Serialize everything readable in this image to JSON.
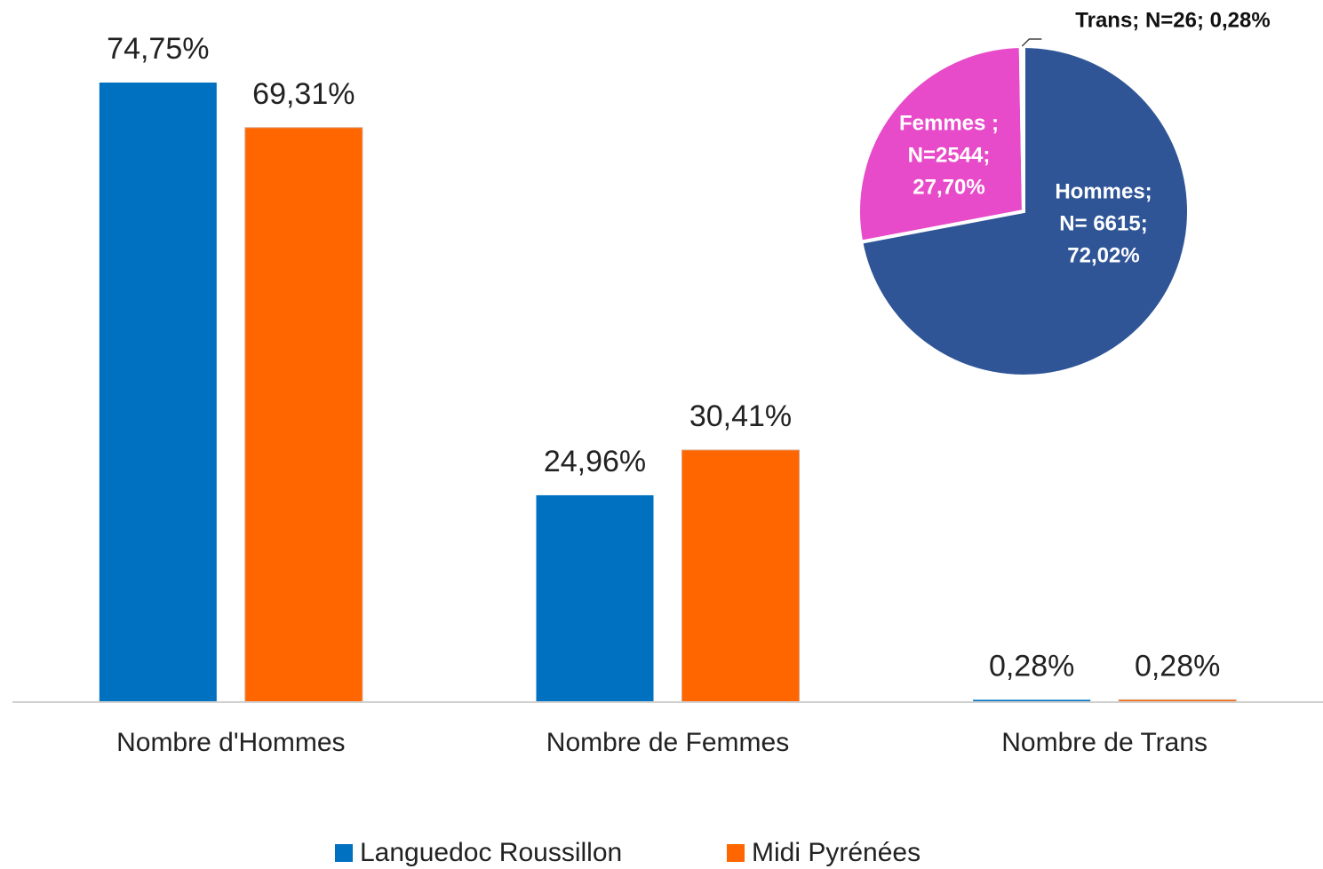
{
  "chart_data": [
    {
      "type": "bar",
      "categories": [
        "Nombre d'Hommes",
        "Nombre de Femmes",
        "Nombre de Trans"
      ],
      "series": [
        {
          "name": "Languedoc Roussillon",
          "color": "#0070c0",
          "values": [
            74.75,
            24.96,
            0.28
          ],
          "value_labels": [
            "74,75%",
            "24,96%",
            "0,28%"
          ]
        },
        {
          "name": "Midi Pyrénées",
          "color": "#ff6600",
          "values": [
            69.31,
            30.41,
            0.28
          ],
          "value_labels": [
            "69,31%",
            "30,41%",
            "0,28%"
          ]
        }
      ],
      "ylim": [
        0,
        80
      ],
      "legend": "bottom"
    },
    {
      "type": "pie",
      "labels": [
        [
          "Hommes;",
          "N= 6615;",
          "72,02%"
        ],
        [
          "Femmes ;",
          "N=2544;",
          "27,70%"
        ],
        [
          "Trans; N=26; 0,28%"
        ]
      ],
      "values": [
        72.02,
        27.7,
        0.28
      ],
      "colors": [
        "#2f5597",
        "#e84bc9",
        "#9dc3e6"
      ]
    }
  ]
}
